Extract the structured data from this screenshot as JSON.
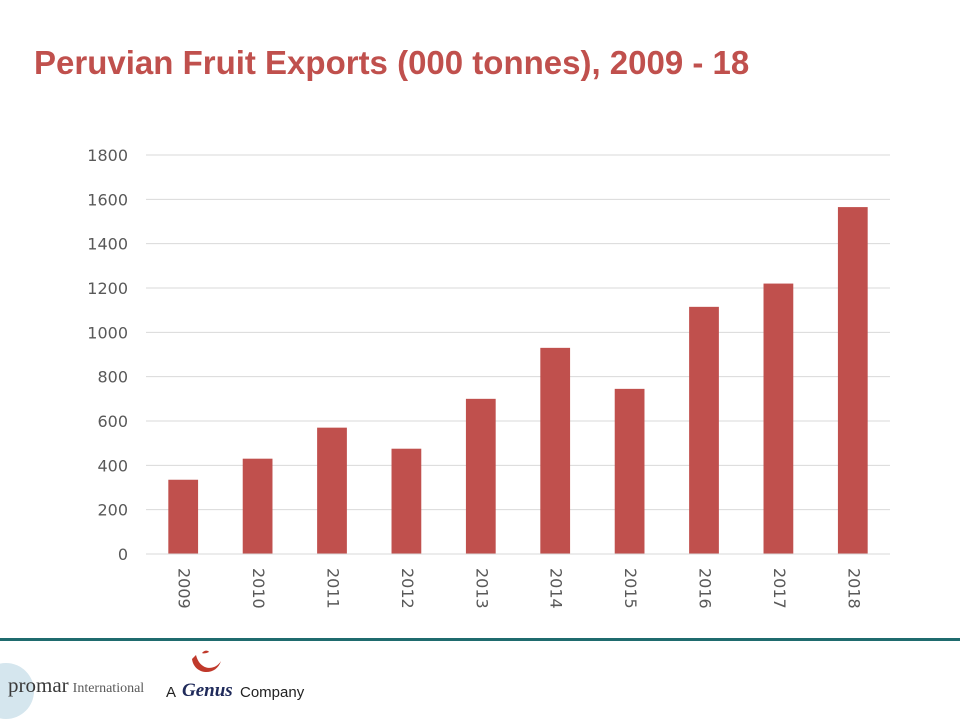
{
  "title": "Peruvian Fruit Exports (000 tonnes), 2009 - 18",
  "chart_data": {
    "type": "bar",
    "title": "",
    "xlabel": "",
    "ylabel": "",
    "categories": [
      "2009",
      "2010",
      "2011",
      "2012",
      "2013",
      "2014",
      "2015",
      "2016",
      "2017",
      "2018"
    ],
    "values": [
      335,
      430,
      570,
      475,
      700,
      930,
      745,
      1115,
      1220,
      1565
    ],
    "ylim": [
      0,
      1800
    ],
    "yticks": [
      0,
      200,
      400,
      600,
      800,
      1000,
      1200,
      1400,
      1600,
      1800
    ],
    "grid": true,
    "legend": "none",
    "bar_color": "#c0504d",
    "x_tick_rotation": "vertical"
  },
  "footer": {
    "promar_brand": "promar",
    "promar_suffix": "International",
    "genus_prefix": "A",
    "genus_name": "Genus",
    "genus_suffix": "Company"
  }
}
